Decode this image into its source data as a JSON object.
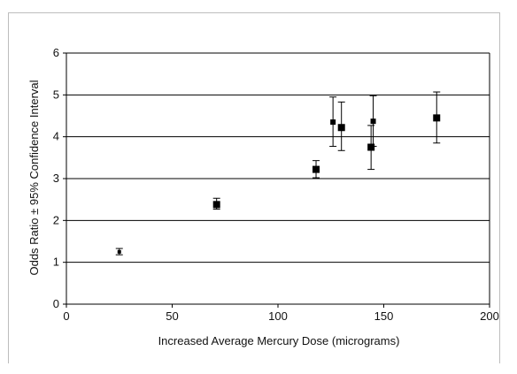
{
  "chart_data": {
    "type": "scatter",
    "title": "",
    "xlabel": "Increased Average Mercury Dose (micrograms)",
    "ylabel": "Odds Ratio ± 95% Confidence Interval",
    "xlim": [
      0,
      200
    ],
    "ylim": [
      0,
      6
    ],
    "x_ticks": [
      0,
      50,
      100,
      150,
      200
    ],
    "y_ticks": [
      0,
      1,
      2,
      3,
      4,
      5,
      6
    ],
    "grid": "horizontal",
    "legend": "none",
    "marker_color": "#000000",
    "points": [
      {
        "x": 25,
        "y": 1.25,
        "lower": 1.18,
        "upper": 1.33
      },
      {
        "x": 71,
        "y": 2.38,
        "lower": 2.27,
        "upper": 2.53
      },
      {
        "x": 118,
        "y": 3.22,
        "lower": 3.02,
        "upper": 3.43
      },
      {
        "x": 126,
        "y": 4.35,
        "lower": 3.77,
        "upper": 4.95
      },
      {
        "x": 130,
        "y": 4.22,
        "lower": 3.67,
        "upper": 4.83
      },
      {
        "x": 144,
        "y": 3.75,
        "lower": 3.22,
        "upper": 4.27
      },
      {
        "x": 145,
        "y": 4.37,
        "lower": 3.77,
        "upper": 4.98
      },
      {
        "x": 175,
        "y": 4.45,
        "lower": 3.85,
        "upper": 5.07
      }
    ]
  }
}
